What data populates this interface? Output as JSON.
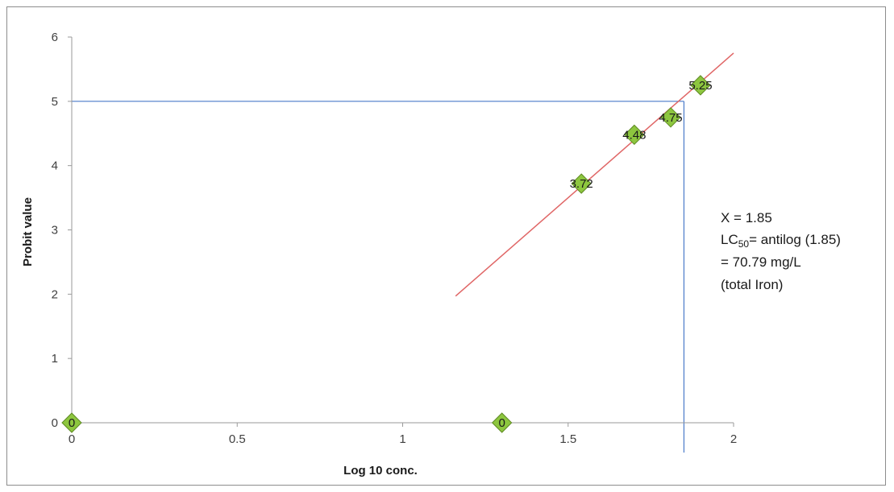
{
  "chart_data": {
    "type": "scatter",
    "title": "",
    "xlabel": "Log 10 conc.",
    "ylabel": "Probit value",
    "xlim": [
      0,
      2
    ],
    "ylim": [
      0,
      6
    ],
    "x_ticks": [
      "0",
      "0.5",
      "1",
      "1.5",
      "2"
    ],
    "y_ticks": [
      "0",
      "1",
      "2",
      "3",
      "4",
      "5",
      "6"
    ],
    "grid": false,
    "legend": "none",
    "series": [
      {
        "x": [
          0,
          1.3,
          1.54,
          1.7,
          1.81,
          1.9
        ],
        "y": [
          0,
          0,
          3.72,
          4.48,
          4.75,
          5.25
        ],
        "labels": [
          "0",
          "0",
          "3.72",
          "4.48",
          "4.75",
          "5.25"
        ],
        "marker": "diamond",
        "color": "#8dc63f"
      }
    ],
    "trendline": {
      "x": [
        1.16,
        2.0
      ],
      "y": [
        1.97,
        5.75
      ],
      "color": "#e06666"
    },
    "reference_lines": {
      "horizontal_y": 5,
      "vertical_x": 1.85,
      "color": "#4a7ac9"
    },
    "annotation": {
      "line1": "X = 1.85",
      "line2_prefix": "LC",
      "line2_subscript": "50",
      "line2_suffix": "= antilog (1.85)",
      "line3": "= 70.79 mg/L",
      "line4": "(total Iron)"
    }
  }
}
